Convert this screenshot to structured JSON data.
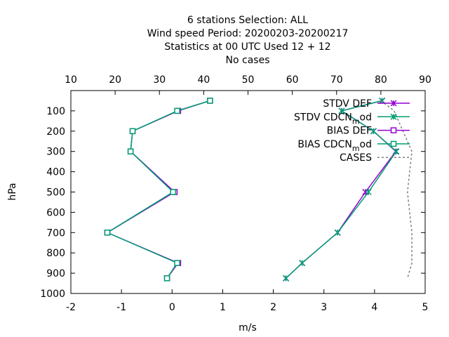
{
  "chart_data": {
    "type": "line",
    "title_lines": [
      "6 stations Selection: ALL",
      "Wind speed  Period: 20200203-20200217",
      "Statistics at 00 UTC  Used  12 + 12",
      "No cases"
    ],
    "xlabel": "m/s",
    "ylabel": "hPa",
    "xlim": [
      -2,
      5
    ],
    "x_ticks": [
      "-2",
      "-1",
      "0",
      "1",
      "2",
      "3",
      "4",
      "5"
    ],
    "x2lim": [
      10,
      90
    ],
    "x2_ticks": [
      "10",
      "20",
      "30",
      "40",
      "50",
      "60",
      "70",
      "80",
      "90"
    ],
    "ylim": [
      1000,
      0
    ],
    "y_ticks": [
      "100",
      "200",
      "300",
      "400",
      "500",
      "600",
      "700",
      "800",
      "900",
      "1000"
    ],
    "legend_position": "top-right",
    "series": [
      {
        "name": "STDV DEF",
        "color": "#9400d3",
        "marker": "x",
        "axis": "bottom",
        "points": [
          [
            4.15,
            50
          ],
          [
            3.35,
            100
          ],
          [
            3.98,
            200
          ],
          [
            4.42,
            300
          ],
          [
            3.82,
            500
          ],
          [
            3.27,
            700
          ],
          [
            2.57,
            850
          ],
          [
            2.25,
            925
          ]
        ]
      },
      {
        "name": "STDV CDCN_mod",
        "color": "#009e73",
        "marker": "x",
        "axis": "bottom",
        "points": [
          [
            4.15,
            50
          ],
          [
            3.35,
            100
          ],
          [
            3.98,
            200
          ],
          [
            4.43,
            300
          ],
          [
            3.88,
            500
          ],
          [
            3.27,
            700
          ],
          [
            2.57,
            850
          ],
          [
            2.25,
            925
          ]
        ]
      },
      {
        "name": "BIAS DEF",
        "color": "#9400d3",
        "marker": "square",
        "axis": "bottom",
        "points": [
          [
            0.75,
            50
          ],
          [
            0.12,
            100
          ],
          [
            -0.78,
            200
          ],
          [
            -0.82,
            300
          ],
          [
            0.05,
            500
          ],
          [
            -1.28,
            700
          ],
          [
            0.12,
            850
          ],
          [
            -0.1,
            925
          ]
        ]
      },
      {
        "name": "BIAS CDCN_mod",
        "color": "#009e73",
        "marker": "square",
        "axis": "bottom",
        "points": [
          [
            0.75,
            50
          ],
          [
            0.1,
            100
          ],
          [
            -0.78,
            200
          ],
          [
            -0.82,
            300
          ],
          [
            0.02,
            500
          ],
          [
            -1.28,
            700
          ],
          [
            0.1,
            850
          ],
          [
            -0.1,
            925
          ]
        ]
      },
      {
        "name": "CASES",
        "color": "#808080",
        "marker": "none",
        "dash": true,
        "axis": "top",
        "points": [
          [
            80,
            50
          ],
          [
            83,
            100
          ],
          [
            85,
            200
          ],
          [
            87,
            300
          ],
          [
            86,
            500
          ],
          [
            87,
            700
          ],
          [
            87,
            850
          ],
          [
            86,
            925
          ]
        ]
      }
    ]
  }
}
